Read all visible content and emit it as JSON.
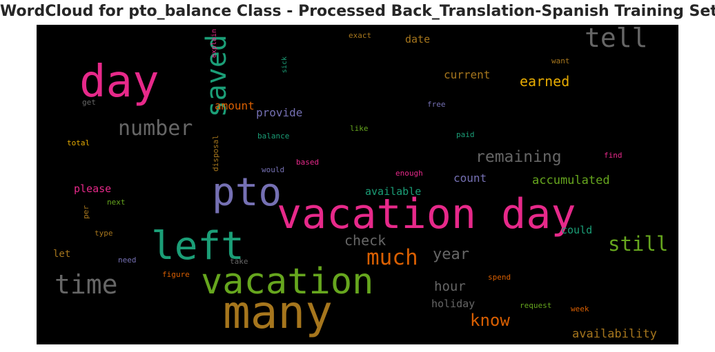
{
  "chart_data": {
    "type": "wordcloud",
    "title": "WordCloud for pto_balance Class - Processed Back_Translation-Spanish Training Set",
    "background": "#000000",
    "colors": {
      "pink": "#e7298a",
      "green": "#1b9e77",
      "gray": "#666666",
      "purple": "#7570b3",
      "lime": "#66a61e",
      "orange": "#d95f02",
      "gold": "#a6761d",
      "yellow": "#e6ab02"
    },
    "words": [
      {
        "text": "vacation day",
        "weight": 60,
        "color": "#e7298a",
        "orientation": "horizontal"
      },
      {
        "text": "many",
        "weight": 66,
        "color": "#a6761d",
        "orientation": "horizontal"
      },
      {
        "text": "day",
        "weight": 64,
        "color": "#e7298a",
        "orientation": "horizontal"
      },
      {
        "text": "left",
        "weight": 56,
        "color": "#1b9e77",
        "orientation": "horizontal"
      },
      {
        "text": "pto",
        "weight": 56,
        "color": "#7570b3",
        "orientation": "horizontal"
      },
      {
        "text": "vacation",
        "weight": 52,
        "color": "#66a61e",
        "orientation": "horizontal"
      },
      {
        "text": "saved",
        "weight": 40,
        "color": "#1b9e77",
        "orientation": "vertical"
      },
      {
        "text": "tell",
        "weight": 38,
        "color": "#666666",
        "orientation": "horizontal"
      },
      {
        "text": "time",
        "weight": 38,
        "color": "#666666",
        "orientation": "horizontal"
      },
      {
        "text": "number",
        "weight": 30,
        "color": "#666666",
        "orientation": "horizontal"
      },
      {
        "text": "much",
        "weight": 31,
        "color": "#d95f02",
        "orientation": "horizontal"
      },
      {
        "text": "still",
        "weight": 29,
        "color": "#66a61e",
        "orientation": "horizontal"
      },
      {
        "text": "remaining",
        "weight": 23,
        "color": "#666666",
        "orientation": "horizontal"
      },
      {
        "text": "know",
        "weight": 24,
        "color": "#d95f02",
        "orientation": "horizontal"
      },
      {
        "text": "year",
        "weight": 22,
        "color": "#666666",
        "orientation": "horizontal"
      },
      {
        "text": "earned",
        "weight": 20,
        "color": "#e6ab02",
        "orientation": "horizontal"
      },
      {
        "text": "check",
        "weight": 20,
        "color": "#666666",
        "orientation": "horizontal"
      },
      {
        "text": "hour",
        "weight": 19,
        "color": "#666666",
        "orientation": "horizontal"
      },
      {
        "text": "accumulated",
        "weight": 17,
        "color": "#66a61e",
        "orientation": "horizontal"
      },
      {
        "text": "availability",
        "weight": 17,
        "color": "#a6761d",
        "orientation": "horizontal"
      },
      {
        "text": "current",
        "weight": 16,
        "color": "#a6761d",
        "orientation": "horizontal"
      },
      {
        "text": "amount",
        "weight": 16,
        "color": "#d95f02",
        "orientation": "horizontal"
      },
      {
        "text": "provide",
        "weight": 16,
        "color": "#7570b3",
        "orientation": "horizontal"
      },
      {
        "text": "count",
        "weight": 16,
        "color": "#7570b3",
        "orientation": "horizontal"
      },
      {
        "text": "available",
        "weight": 15,
        "color": "#1b9e77",
        "orientation": "horizontal"
      },
      {
        "text": "could",
        "weight": 15,
        "color": "#1b9e77",
        "orientation": "horizontal"
      },
      {
        "text": "holiday",
        "weight": 15,
        "color": "#666666",
        "orientation": "horizontal"
      },
      {
        "text": "please",
        "weight": 15,
        "color": "#e7298a",
        "orientation": "horizontal"
      },
      {
        "text": "date",
        "weight": 15,
        "color": "#a6761d",
        "orientation": "horizontal"
      },
      {
        "text": "let",
        "weight": 14,
        "color": "#a6761d",
        "orientation": "horizontal"
      },
      {
        "text": "exact",
        "weight": 11,
        "color": "#a6761d",
        "orientation": "horizontal"
      },
      {
        "text": "explain",
        "weight": 10,
        "color": "#e7298a",
        "orientation": "vertical"
      },
      {
        "text": "sick",
        "weight": 10,
        "color": "#1b9e77",
        "orientation": "vertical"
      },
      {
        "text": "want",
        "weight": 11,
        "color": "#a6761d",
        "orientation": "horizontal"
      },
      {
        "text": "get",
        "weight": 11,
        "color": "#666666",
        "orientation": "horizontal"
      },
      {
        "text": "free",
        "weight": 11,
        "color": "#7570b3",
        "orientation": "horizontal"
      },
      {
        "text": "balance",
        "weight": 11,
        "color": "#1b9e77",
        "orientation": "horizontal"
      },
      {
        "text": "like",
        "weight": 11,
        "color": "#66a61e",
        "orientation": "horizontal"
      },
      {
        "text": "paid",
        "weight": 11,
        "color": "#1b9e77",
        "orientation": "horizontal"
      },
      {
        "text": "total",
        "weight": 11,
        "color": "#e6ab02",
        "orientation": "horizontal"
      },
      {
        "text": "disposal",
        "weight": 11,
        "color": "#a6761d",
        "orientation": "vertical"
      },
      {
        "text": "based",
        "weight": 11,
        "color": "#e7298a",
        "orientation": "horizontal"
      },
      {
        "text": "find",
        "weight": 11,
        "color": "#e7298a",
        "orientation": "horizontal"
      },
      {
        "text": "would",
        "weight": 11,
        "color": "#7570b3",
        "orientation": "horizontal"
      },
      {
        "text": "enough",
        "weight": 11,
        "color": "#e7298a",
        "orientation": "horizontal"
      },
      {
        "text": "next",
        "weight": 11,
        "color": "#66a61e",
        "orientation": "horizontal"
      },
      {
        "text": "per",
        "weight": 11,
        "color": "#a6761d",
        "orientation": "vertical"
      },
      {
        "text": "type",
        "weight": 11,
        "color": "#a6761d",
        "orientation": "horizontal"
      },
      {
        "text": "need",
        "weight": 11,
        "color": "#7570b3",
        "orientation": "horizontal"
      },
      {
        "text": "take",
        "weight": 11,
        "color": "#666666",
        "orientation": "horizontal"
      },
      {
        "text": "figure",
        "weight": 11,
        "color": "#d95f02",
        "orientation": "horizontal"
      },
      {
        "text": "spend",
        "weight": 11,
        "color": "#d95f02",
        "orientation": "horizontal"
      },
      {
        "text": "request",
        "weight": 11,
        "color": "#66a61e",
        "orientation": "horizontal"
      },
      {
        "text": "week",
        "weight": 11,
        "color": "#d95f02",
        "orientation": "horizontal"
      }
    ]
  }
}
